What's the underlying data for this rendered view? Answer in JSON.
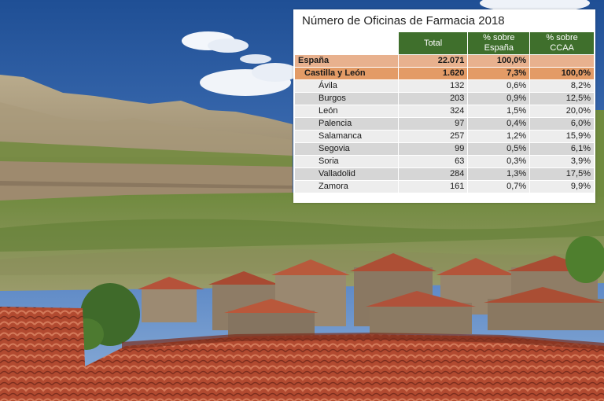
{
  "title": "Número de Oficinas de Farmacia 2018",
  "columns": [
    "Total",
    "% sobre España",
    "% sobre CCAA"
  ],
  "spain": {
    "name": "España",
    "total": "22.071",
    "pct_spain": "100,0%",
    "pct_ccaa": ""
  },
  "cyl": {
    "name": "Castilla y León",
    "total": "1.620",
    "pct_spain": "7,3%",
    "pct_ccaa": "100,0%"
  },
  "provinces": [
    {
      "name": "Ávila",
      "total": "132",
      "pct_spain": "0,6%",
      "pct_ccaa": "8,2%"
    },
    {
      "name": "Burgos",
      "total": "203",
      "pct_spain": "0,9%",
      "pct_ccaa": "12,5%"
    },
    {
      "name": "León",
      "total": "324",
      "pct_spain": "1,5%",
      "pct_ccaa": "20,0%"
    },
    {
      "name": "Palencia",
      "total": "97",
      "pct_spain": "0,4%",
      "pct_ccaa": "6,0%"
    },
    {
      "name": "Salamanca",
      "total": "257",
      "pct_spain": "1,2%",
      "pct_ccaa": "15,9%"
    },
    {
      "name": "Segovia",
      "total": "99",
      "pct_spain": "0,5%",
      "pct_ccaa": "6,1%"
    },
    {
      "name": "Soria",
      "total": "63",
      "pct_spain": "0,3%",
      "pct_ccaa": "3,9%"
    },
    {
      "name": "Valladolid",
      "total": "284",
      "pct_spain": "1,3%",
      "pct_ccaa": "17,5%"
    },
    {
      "name": "Zamora",
      "total": "161",
      "pct_spain": "0,7%",
      "pct_ccaa": "9,9%"
    }
  ],
  "colors": {
    "header_green": "#3f6f2c",
    "spain_row": "#e8b18e",
    "cyl_row": "#e39b66",
    "row_light": "#ededed",
    "row_dark": "#d6d6d6"
  }
}
